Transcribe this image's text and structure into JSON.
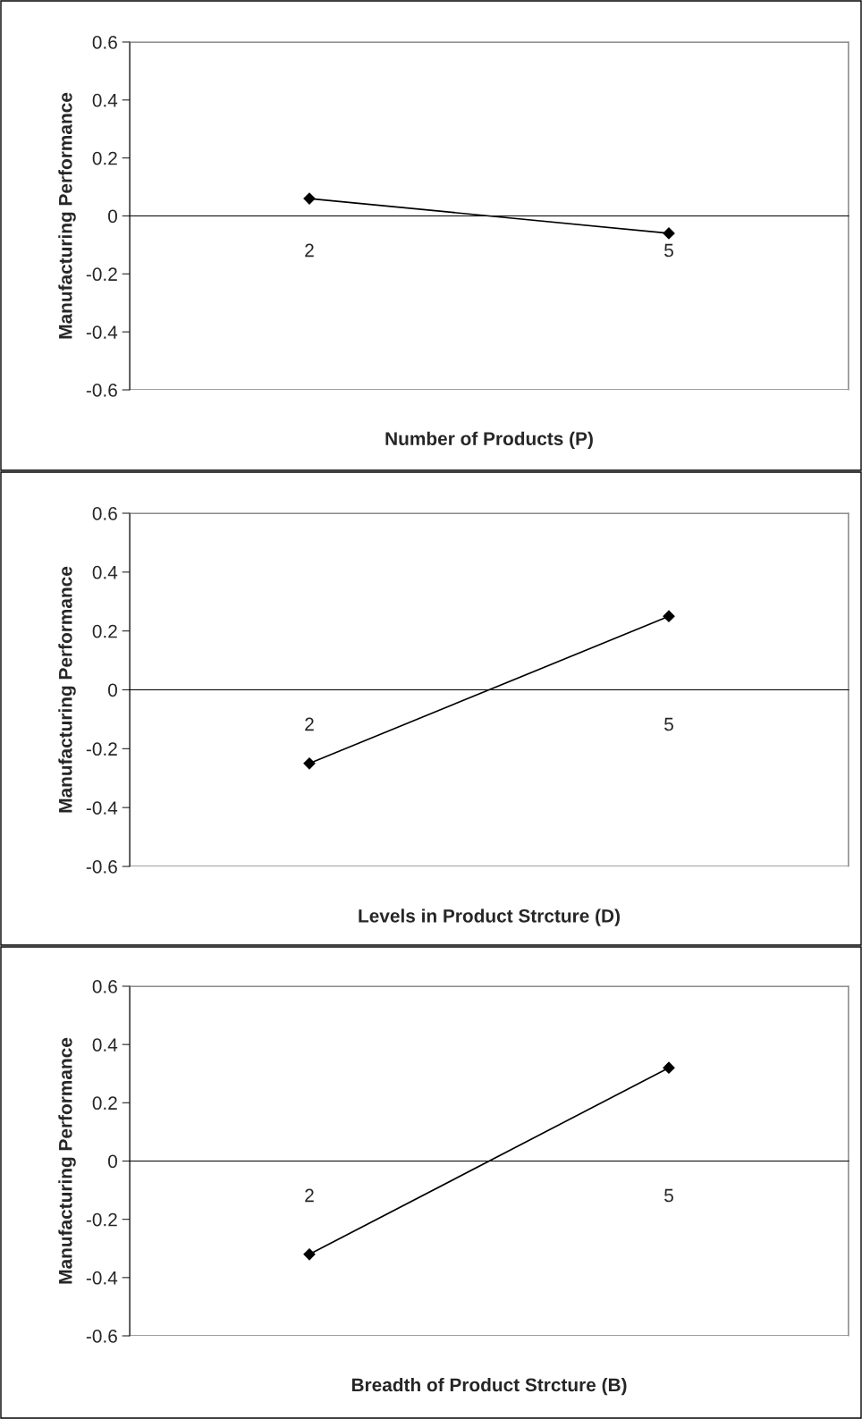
{
  "chart_data": [
    {
      "type": "line",
      "categories": [
        "2",
        "5"
      ],
      "series": [
        {
          "color": "#000000",
          "values": [
            0.06,
            -0.06
          ]
        }
      ],
      "ylim": [
        -0.6,
        0.6
      ],
      "yticks": [
        -0.6,
        -0.4,
        -0.2,
        0,
        0.2,
        0.4,
        0.6
      ],
      "ylabel": "Manufacturing Performance",
      "xlabel": "Number of Products (P)",
      "marker": "diamond",
      "line_style": "solid",
      "grid": false
    },
    {
      "type": "line",
      "categories": [
        "2",
        "5"
      ],
      "series": [
        {
          "color": "#000000",
          "values": [
            -0.25,
            0.25
          ]
        }
      ],
      "ylim": [
        -0.6,
        0.6
      ],
      "yticks": [
        -0.6,
        -0.4,
        -0.2,
        0,
        0.2,
        0.4,
        0.6
      ],
      "ylabel": "Manufacturing Performance",
      "xlabel": "Levels in Product Strcture (D)",
      "marker": "diamond",
      "line_style": "solid",
      "grid": false
    },
    {
      "type": "line",
      "categories": [
        "2",
        "5"
      ],
      "series": [
        {
          "color": "#000000",
          "values": [
            -0.32,
            0.32
          ]
        }
      ],
      "ylim": [
        -0.6,
        0.6
      ],
      "yticks": [
        -0.6,
        -0.4,
        -0.2,
        0,
        0.2,
        0.4,
        0.6
      ],
      "ylabel": "Manufacturing Performance",
      "xlabel": "Breadth of Product Strcture (B)",
      "marker": "diamond",
      "line_style": "solid",
      "grid": false
    }
  ]
}
